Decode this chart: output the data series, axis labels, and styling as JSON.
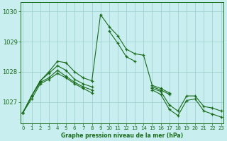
{
  "title": "Graphe pression niveau de la mer (hPa)",
  "bg_color": "#c8eef0",
  "grid_color": "#99cccc",
  "line_color": "#1a6b1a",
  "ylim": [
    1026.3,
    1030.3
  ],
  "xlim": [
    -0.3,
    23.3
  ],
  "yticks": [
    1027,
    1028,
    1029,
    1030
  ],
  "xticks": [
    0,
    1,
    2,
    3,
    4,
    5,
    6,
    7,
    8,
    9,
    10,
    11,
    12,
    13,
    14,
    15,
    16,
    17,
    18,
    19,
    20,
    21,
    22,
    23
  ],
  "series": [
    [
      1026.65,
      1027.2,
      1027.7,
      1028.0,
      1028.35,
      1028.3,
      1028.0,
      1027.8,
      1027.7,
      1029.9,
      1029.5,
      1029.2,
      1028.75,
      1028.6,
      1028.55,
      1027.55,
      1027.45,
      1027.3,
      null,
      null,
      null,
      null,
      null,
      null
    ],
    [
      1026.65,
      1027.2,
      1027.7,
      1027.95,
      1028.2,
      1028.05,
      1027.75,
      1027.6,
      1027.5,
      null,
      1029.35,
      1028.95,
      1028.5,
      1028.35,
      null,
      1027.5,
      1027.4,
      1027.25,
      null,
      null,
      null,
      null,
      null,
      null
    ],
    [
      1026.65,
      1027.2,
      1027.65,
      1027.8,
      1028.05,
      1027.85,
      1027.65,
      1027.5,
      1027.4,
      null,
      null,
      null,
      null,
      null,
      null,
      1027.45,
      1027.35,
      1026.9,
      1026.7,
      1027.2,
      1027.2,
      1026.85,
      1026.8,
      1026.7
    ],
    [
      1026.65,
      1027.1,
      1027.6,
      1027.75,
      1027.95,
      1027.8,
      1027.6,
      1027.45,
      1027.3,
      null,
      null,
      null,
      null,
      null,
      null,
      1027.4,
      1027.25,
      1026.75,
      1026.55,
      1027.05,
      1027.1,
      1026.7,
      1026.6,
      1026.5
    ]
  ]
}
